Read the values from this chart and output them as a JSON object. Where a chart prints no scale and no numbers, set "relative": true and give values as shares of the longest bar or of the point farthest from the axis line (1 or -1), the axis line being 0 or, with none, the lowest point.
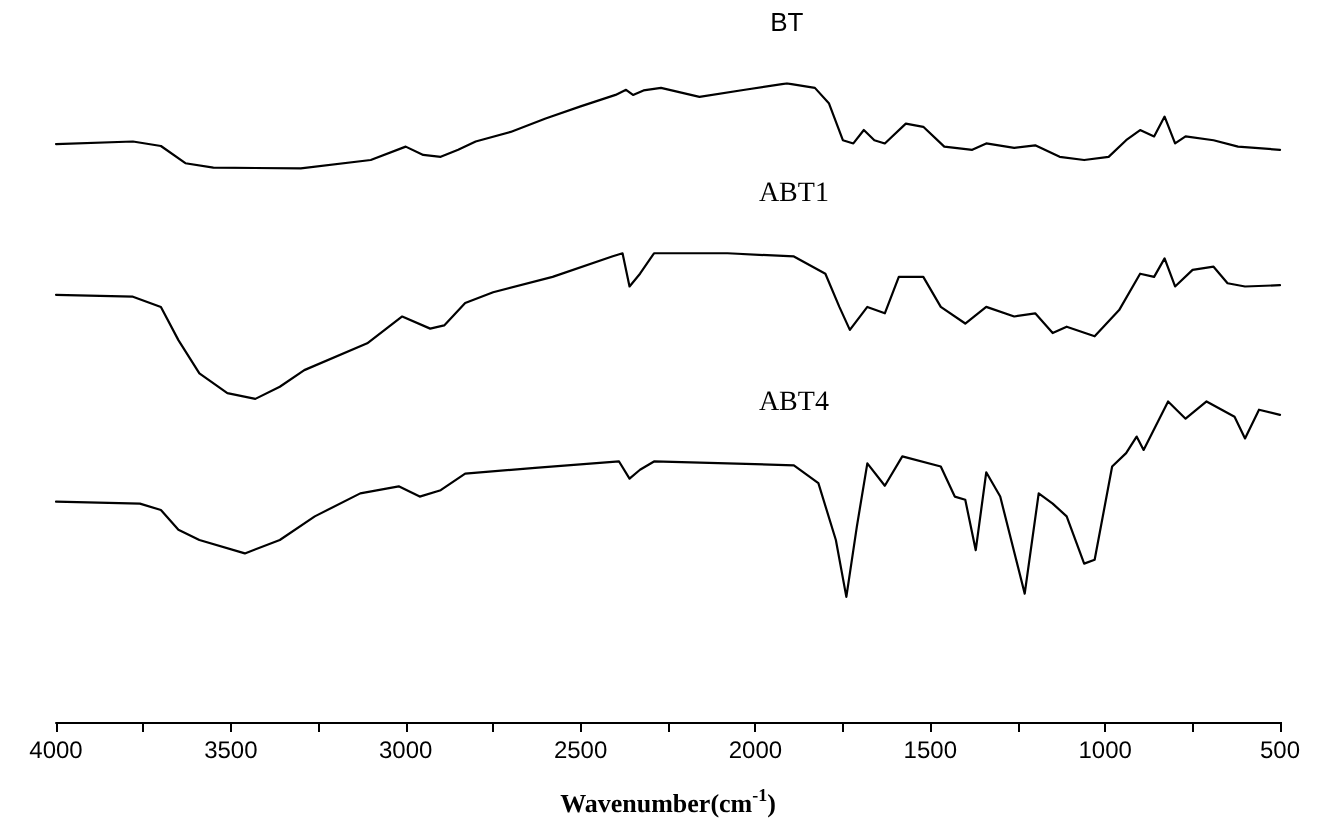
{
  "chart_data": {
    "type": "line",
    "relative": true,
    "xlabel": "Wavenumber(cm$^{-1}$)",
    "xlim": [
      4000,
      500
    ],
    "xticks": [
      4000,
      {
        "value": 3750,
        "label": null
      },
      3500,
      {
        "value": 3250,
        "label": null
      },
      3000,
      {
        "value": 2750,
        "label": null
      },
      2500,
      {
        "value": 2250,
        "label": null
      },
      2000,
      {
        "value": 1750,
        "label": null
      },
      1500,
      {
        "value": 1250,
        "label": null
      },
      1000,
      {
        "value": 750,
        "label": null
      },
      500
    ],
    "tick_labels": "x",
    "grid": false,
    "legend": false,
    "marker": "none",
    "line_style": "solid",
    "series": [
      {
        "name": "BT",
        "color": "#000000",
        "x": [
          4000,
          3780,
          3700,
          3630,
          3550,
          3300,
          3100,
          3000,
          2950,
          2900,
          2850,
          2800,
          2700,
          2600,
          2500,
          2400,
          2370,
          2350,
          2320,
          2270,
          2160,
          2030,
          1910,
          1830,
          1790,
          1750,
          1720,
          1690,
          1660,
          1630,
          1570,
          1520,
          1460,
          1380,
          1340,
          1260,
          1200,
          1130,
          1060,
          990,
          940,
          900,
          860,
          830,
          800,
          770,
          690,
          620,
          500
        ],
        "values": [
          0.905,
          0.909,
          0.902,
          0.875,
          0.868,
          0.867,
          0.88,
          0.901,
          0.888,
          0.885,
          0.896,
          0.909,
          0.924,
          0.945,
          0.964,
          0.982,
          0.99,
          0.982,
          0.989,
          0.993,
          0.979,
          0.99,
          1.0,
          0.993,
          0.969,
          0.911,
          0.906,
          0.927,
          0.911,
          0.906,
          0.937,
          0.932,
          0.901,
          0.896,
          0.906,
          0.899,
          0.903,
          0.885,
          0.88,
          0.885,
          0.911,
          0.927,
          0.917,
          0.948,
          0.906,
          0.917,
          0.911,
          0.901,
          0.896
        ]
      },
      {
        "name": "ABT1",
        "color": "#000000",
        "x": [
          4000,
          3780,
          3700,
          3650,
          3590,
          3510,
          3430,
          3360,
          3290,
          3110,
          3010,
          2930,
          2890,
          2830,
          2750,
          2580,
          2410,
          2380,
          2360,
          2330,
          2290,
          2080,
          1890,
          1800,
          1760,
          1730,
          1680,
          1630,
          1590,
          1520,
          1470,
          1400,
          1340,
          1260,
          1200,
          1150,
          1110,
          1030,
          960,
          900,
          860,
          830,
          800,
          750,
          690,
          650,
          600,
          500
        ],
        "values": [
          0.669,
          0.666,
          0.65,
          0.598,
          0.546,
          0.515,
          0.506,
          0.525,
          0.551,
          0.593,
          0.635,
          0.616,
          0.621,
          0.656,
          0.673,
          0.697,
          0.729,
          0.734,
          0.682,
          0.702,
          0.734,
          0.734,
          0.729,
          0.702,
          0.65,
          0.614,
          0.65,
          0.64,
          0.697,
          0.697,
          0.65,
          0.624,
          0.65,
          0.635,
          0.64,
          0.609,
          0.619,
          0.604,
          0.645,
          0.702,
          0.697,
          0.726,
          0.682,
          0.708,
          0.713,
          0.687,
          0.682,
          0.684
        ]
      },
      {
        "name": "ABT4",
        "color": "#000000",
        "x": [
          4000,
          3760,
          3700,
          3650,
          3590,
          3460,
          3360,
          3260,
          3130,
          3020,
          2960,
          2900,
          2830,
          2630,
          2390,
          2360,
          2330,
          2290,
          1890,
          1820,
          1770,
          1740,
          1710,
          1680,
          1630,
          1580,
          1470,
          1430,
          1400,
          1370,
          1340,
          1300,
          1230,
          1190,
          1150,
          1110,
          1060,
          1030,
          980,
          940,
          910,
          890,
          820,
          770,
          710,
          630,
          600,
          560,
          500
        ],
        "values": [
          0.345,
          0.342,
          0.332,
          0.301,
          0.285,
          0.264,
          0.285,
          0.322,
          0.358,
          0.369,
          0.353,
          0.363,
          0.389,
          0.398,
          0.408,
          0.381,
          0.395,
          0.408,
          0.402,
          0.374,
          0.285,
          0.196,
          0.306,
          0.405,
          0.37,
          0.416,
          0.4,
          0.353,
          0.348,
          0.269,
          0.391,
          0.353,
          0.201,
          0.358,
          0.342,
          0.322,
          0.248,
          0.254,
          0.4,
          0.421,
          0.447,
          0.426,
          0.502,
          0.475,
          0.502,
          0.478,
          0.444,
          0.489,
          0.481
        ]
      }
    ]
  }
}
